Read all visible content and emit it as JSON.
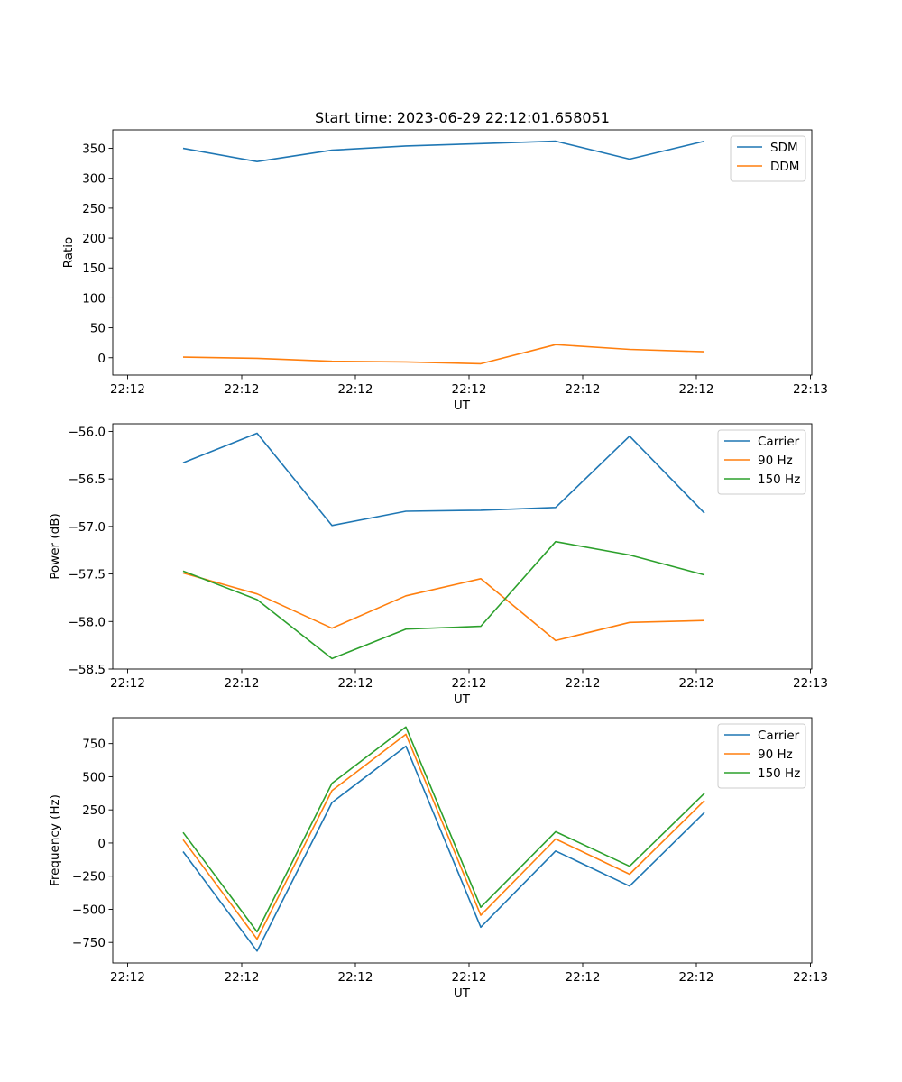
{
  "title": "Start time: 2023-06-29 22:12:01.658051",
  "colors": {
    "blue": "#1f77b4",
    "orange": "#ff7f0e",
    "green": "#2ca02c"
  },
  "chart_data": [
    {
      "type": "line",
      "xlabel": "UT",
      "ylabel": "Ratio",
      "x_tick_labels": [
        "22:12",
        "22:12",
        "22:12",
        "22:12",
        "22:12",
        "22:12",
        "22:13"
      ],
      "y_ticks": [
        0,
        50,
        100,
        150,
        200,
        250,
        300,
        350
      ],
      "ylim": [
        -29,
        381
      ],
      "legend_position": "upper-right",
      "series": [
        {
          "name": "SDM",
          "color": "#1f77b4",
          "values": [
            350,
            328,
            347,
            354,
            358,
            362,
            332,
            362
          ]
        },
        {
          "name": "DDM",
          "color": "#ff7f0e",
          "values": [
            1,
            -1,
            -6,
            -7,
            -10,
            22,
            14,
            10
          ]
        }
      ]
    },
    {
      "type": "line",
      "xlabel": "UT",
      "ylabel": "Power (dB)",
      "x_tick_labels": [
        "22:12",
        "22:12",
        "22:12",
        "22:12",
        "22:12",
        "22:12",
        "22:13"
      ],
      "y_ticks": [
        -58.5,
        -58.0,
        -57.5,
        -57.0,
        -56.5,
        -56.0
      ],
      "y_tick_labels": [
        "−58.5",
        "−58.0",
        "−57.5",
        "−57.0",
        "−56.5",
        "−56.0"
      ],
      "ylim": [
        -58.5,
        -55.92
      ],
      "legend_position": "upper-right",
      "series": [
        {
          "name": "Carrier",
          "color": "#1f77b4",
          "values": [
            -56.33,
            -56.02,
            -56.99,
            -56.84,
            -56.83,
            -56.8,
            -56.05,
            -56.86
          ]
        },
        {
          "name": "90 Hz",
          "color": "#ff7f0e",
          "values": [
            -57.49,
            -57.71,
            -58.07,
            -57.73,
            -57.55,
            -58.2,
            -58.01,
            -57.99
          ]
        },
        {
          "name": "150 Hz",
          "color": "#2ca02c",
          "values": [
            -57.47,
            -57.77,
            -58.39,
            -58.08,
            -58.05,
            -57.16,
            -57.3,
            -57.51
          ]
        }
      ]
    },
    {
      "type": "line",
      "xlabel": "UT",
      "ylabel": "Frequency (Hz)",
      "x_tick_labels": [
        "22:12",
        "22:12",
        "22:12",
        "22:12",
        "22:12",
        "22:12",
        "22:13"
      ],
      "y_ticks": [
        -750,
        -500,
        -250,
        0,
        250,
        500,
        750
      ],
      "y_tick_labels": [
        "−750",
        "−500",
        "−250",
        "0",
        "250",
        "500",
        "750"
      ],
      "ylim": [
        -905,
        945
      ],
      "legend_position": "upper-right",
      "series": [
        {
          "name": "Carrier",
          "color": "#1f77b4",
          "values": [
            -65,
            -815,
            305,
            730,
            -635,
            -60,
            -325,
            230
          ]
        },
        {
          "name": "90 Hz",
          "color": "#ff7f0e",
          "values": [
            25,
            -725,
            395,
            820,
            -545,
            30,
            -235,
            320
          ]
        },
        {
          "name": "150 Hz",
          "color": "#2ca02c",
          "values": [
            80,
            -670,
            450,
            875,
            -485,
            85,
            -175,
            375
          ]
        }
      ]
    }
  ]
}
